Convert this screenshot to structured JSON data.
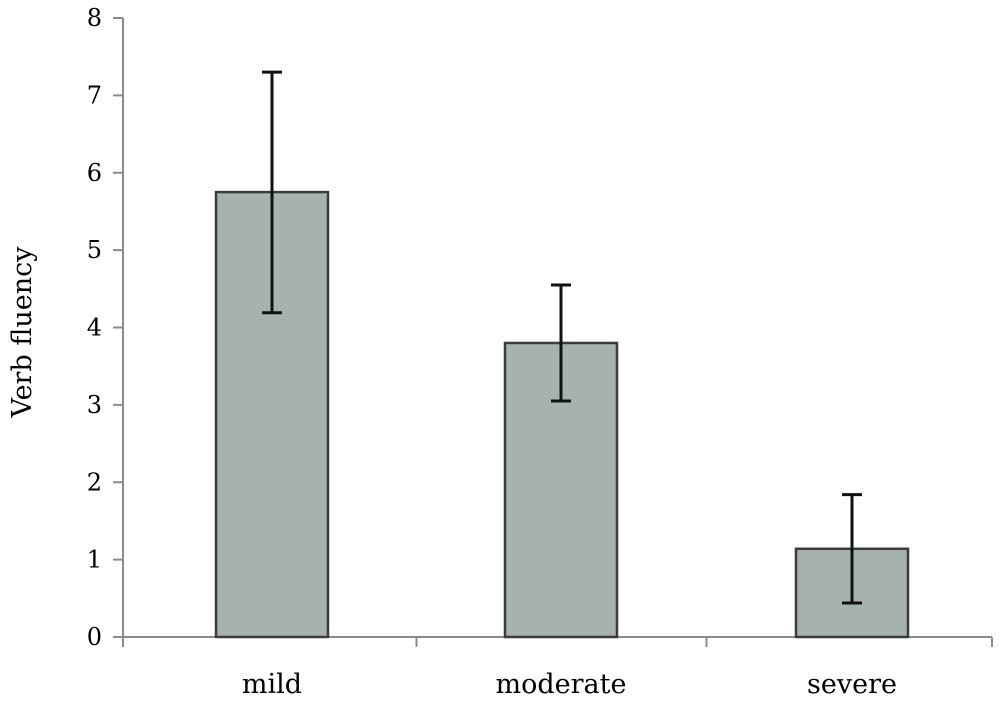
{
  "chart_data": {
    "type": "bar",
    "title": "",
    "xlabel": "",
    "ylabel": "Verb fluency",
    "categories": [
      "mild",
      "moderate",
      "severe"
    ],
    "values": [
      5.75,
      3.8,
      1.14
    ],
    "error_low": [
      4.19,
      3.05,
      0.44
    ],
    "error_high": [
      7.3,
      4.55,
      1.84
    ],
    "ylim": [
      0,
      8
    ],
    "yticks": [
      "0",
      "1",
      "2",
      "3",
      "4",
      "5",
      "6",
      "7",
      "8"
    ],
    "grid": false,
    "legend": "none",
    "colors": {
      "bar_fill": "#a6b2b0",
      "bar_edge": "#3c3c3c",
      "error_bar": "#111111",
      "axis": "#8c8c8c"
    }
  }
}
